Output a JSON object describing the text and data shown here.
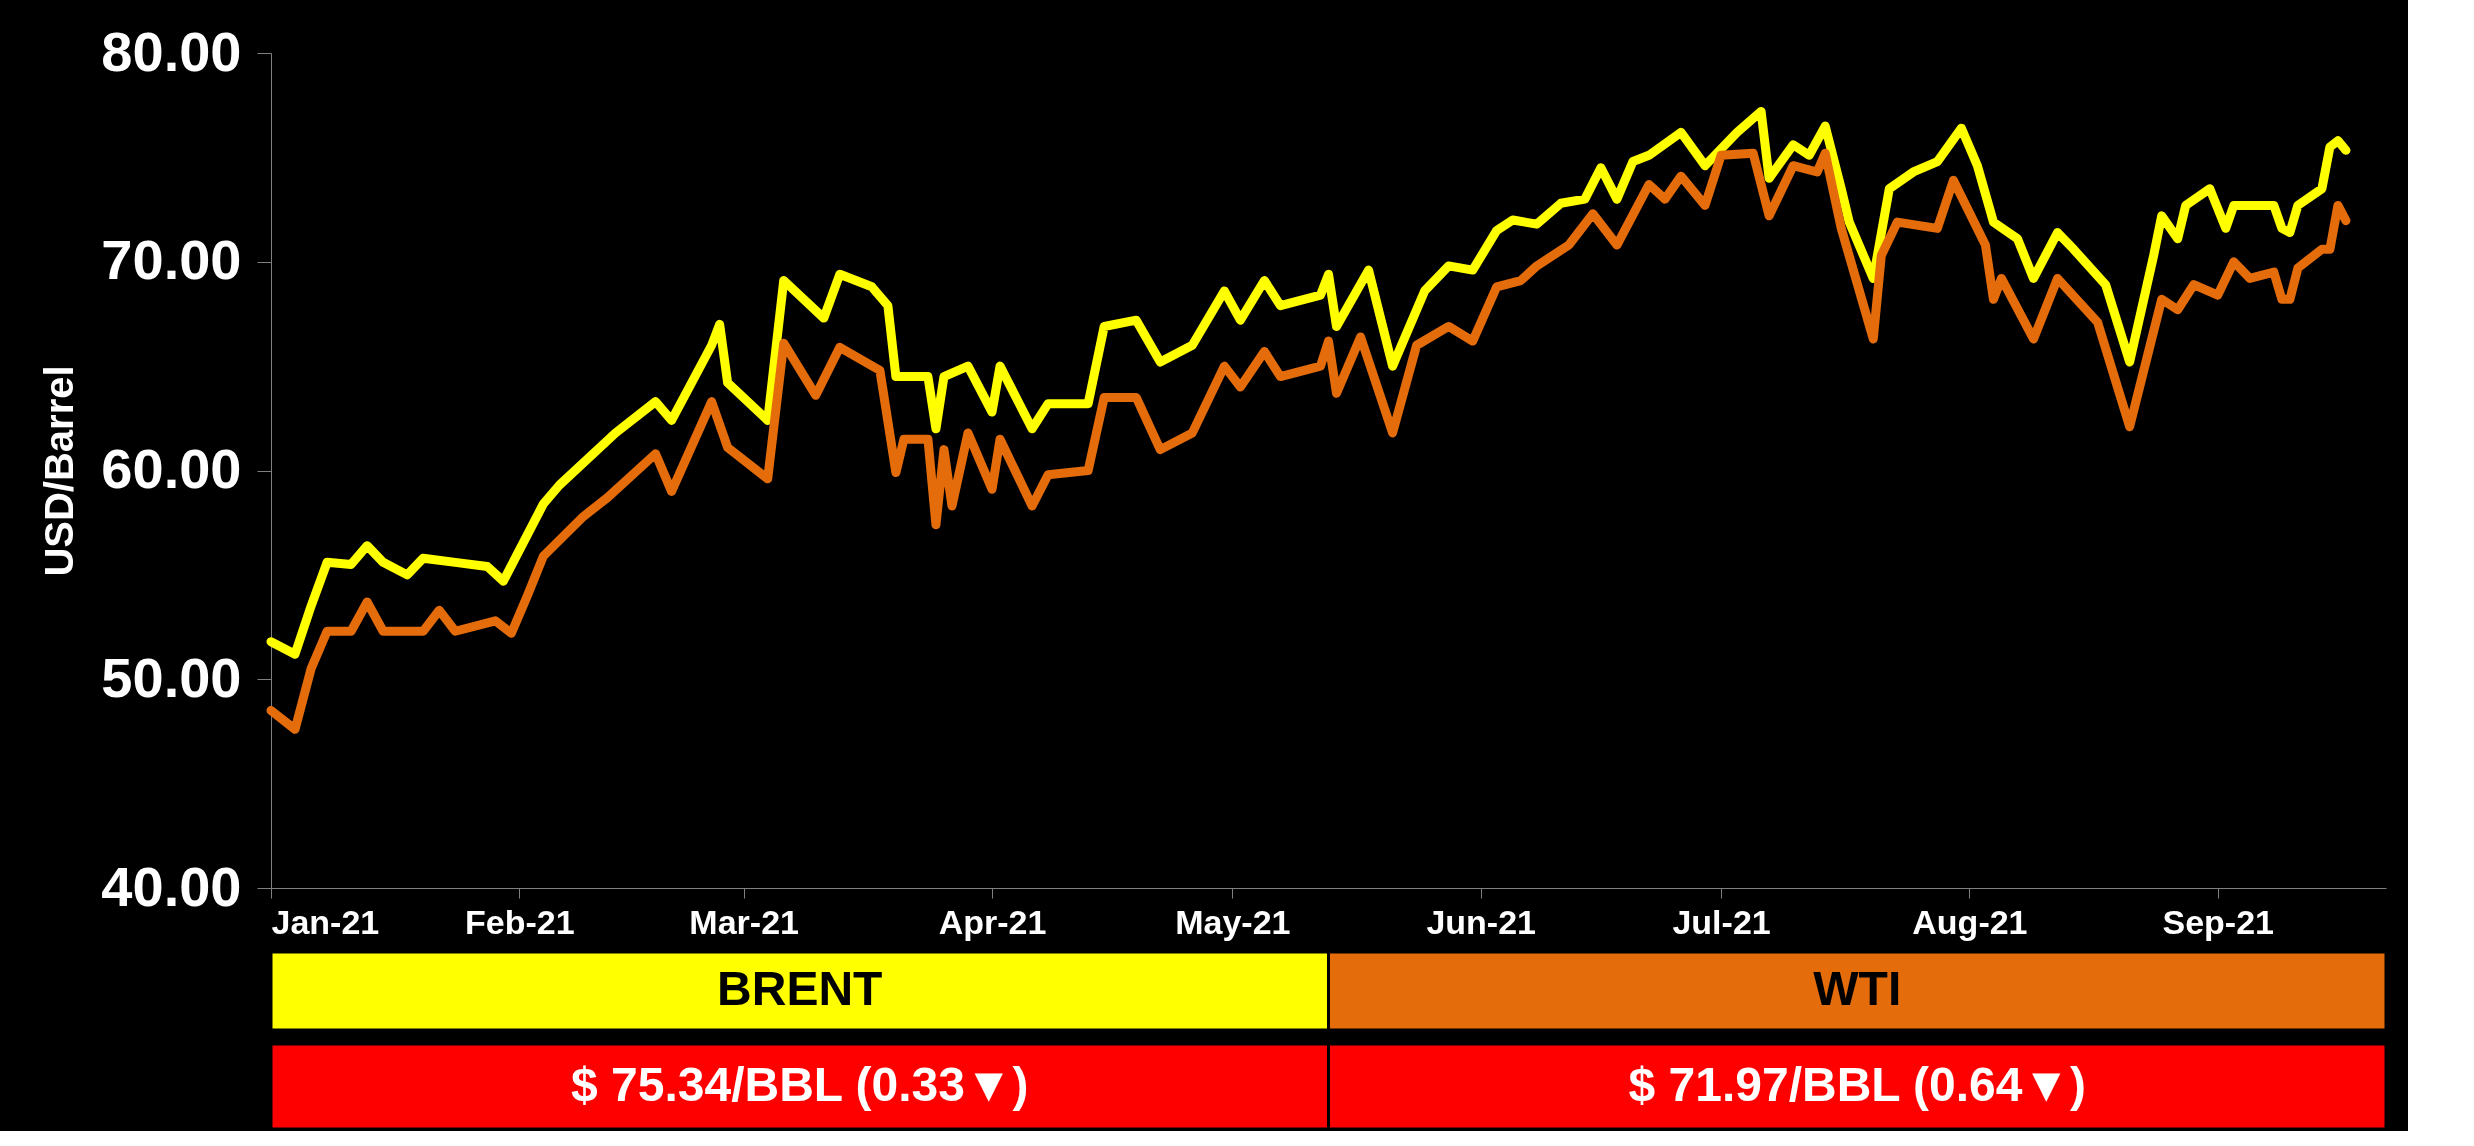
{
  "chart_data": {
    "type": "line",
    "ylabel": "USD/Barrel",
    "xlim": [
      "2021-01-01",
      "2021-09-22"
    ],
    "ylim": [
      40,
      80
    ],
    "xticks": [
      {
        "value": "2021-01-01",
        "label": "Jan-21"
      },
      {
        "value": "2021-02-01",
        "label": "Feb-21"
      },
      {
        "value": "2021-03-01",
        "label": "Mar-21"
      },
      {
        "value": "2021-04-01",
        "label": "Apr-21"
      },
      {
        "value": "2021-05-01",
        "label": "May-21"
      },
      {
        "value": "2021-06-01",
        "label": "Jun-21"
      },
      {
        "value": "2021-07-01",
        "label": "Jul-21"
      },
      {
        "value": "2021-08-01",
        "label": "Aug-21"
      },
      {
        "value": "2021-09-01",
        "label": "Sep-21"
      }
    ],
    "yticks": [
      {
        "value": 40,
        "label": "40.00"
      },
      {
        "value": 50,
        "label": "50.00"
      },
      {
        "value": 60,
        "label": "60.00"
      },
      {
        "value": 70,
        "label": "70.00"
      },
      {
        "value": 80,
        "label": "80.00"
      }
    ],
    "grid": false,
    "legend": "bottom",
    "series": [
      {
        "name": "BRENT",
        "color": "#ffff00",
        "x": [
          "2021-01-01",
          "2021-01-04",
          "2021-01-06",
          "2021-01-08",
          "2021-01-11",
          "2021-01-13",
          "2021-01-15",
          "2021-01-18",
          "2021-01-20",
          "2021-01-24",
          "2021-01-28",
          "2021-01-30",
          "2021-02-04",
          "2021-02-06",
          "2021-02-13",
          "2021-02-18",
          "2021-02-20",
          "2021-02-25",
          "2021-02-26",
          "2021-02-27",
          "2021-03-04",
          "2021-03-06",
          "2021-03-11",
          "2021-03-13",
          "2021-03-17",
          "2021-03-19",
          "2021-03-20",
          "2021-03-24",
          "2021-03-25",
          "2021-03-26",
          "2021-03-29",
          "2021-04-01",
          "2021-04-02",
          "2021-04-06",
          "2021-04-08",
          "2021-04-13",
          "2021-04-15",
          "2021-04-19",
          "2021-04-22",
          "2021-04-26",
          "2021-04-30",
          "2021-05-02",
          "2021-05-05",
          "2021-05-07",
          "2021-05-12",
          "2021-05-13",
          "2021-05-14",
          "2021-05-18",
          "2021-05-21",
          "2021-05-25",
          "2021-05-28",
          "2021-05-31",
          "2021-06-03",
          "2021-06-05",
          "2021-06-08",
          "2021-06-11",
          "2021-06-14",
          "2021-06-16",
          "2021-06-18",
          "2021-06-20",
          "2021-06-22",
          "2021-06-26",
          "2021-06-29",
          "2021-07-03",
          "2021-07-06",
          "2021-07-07",
          "2021-07-10",
          "2021-07-12",
          "2021-07-14",
          "2021-07-16",
          "2021-07-17",
          "2021-07-20",
          "2021-07-22",
          "2021-07-25",
          "2021-07-28",
          "2021-07-31",
          "2021-08-02",
          "2021-08-04",
          "2021-08-07",
          "2021-08-09",
          "2021-08-12",
          "2021-08-14",
          "2021-08-18",
          "2021-08-21",
          "2021-08-24",
          "2021-08-25",
          "2021-08-27",
          "2021-08-28",
          "2021-08-31",
          "2021-09-02",
          "2021-09-03",
          "2021-09-08",
          "2021-09-09",
          "2021-09-10",
          "2021-09-11",
          "2021-09-14",
          "2021-09-15",
          "2021-09-16",
          "2021-09-17"
        ],
        "values": [
          51.8,
          51.2,
          53.5,
          55.6,
          55.5,
          56.4,
          55.6,
          55.0,
          55.8,
          55.6,
          55.4,
          54.7,
          58.4,
          59.3,
          61.8,
          63.3,
          62.4,
          66.0,
          67.0,
          64.2,
          62.4,
          69.1,
          67.3,
          69.4,
          68.8,
          67.9,
          64.5,
          64.5,
          62.0,
          64.5,
          65.0,
          62.8,
          65.0,
          62.0,
          63.2,
          63.2,
          66.9,
          67.2,
          65.2,
          66.0,
          68.6,
          67.2,
          69.1,
          67.9,
          68.4,
          69.4,
          66.9,
          69.6,
          65.0,
          68.6,
          69.8,
          69.6,
          71.5,
          72.0,
          71.8,
          72.8,
          73.0,
          74.5,
          73.0,
          74.8,
          75.1,
          76.2,
          74.6,
          76.2,
          77.2,
          74.0,
          75.6,
          75.1,
          76.5,
          73.5,
          71.9,
          69.2,
          73.5,
          74.3,
          74.8,
          76.4,
          74.6,
          71.9,
          71.1,
          69.2,
          71.4,
          70.6,
          68.9,
          65.2,
          70.3,
          72.2,
          71.1,
          72.7,
          73.5,
          71.6,
          72.7,
          72.7,
          71.6,
          71.4,
          72.7,
          73.5,
          75.5,
          75.8,
          75.34
        ]
      },
      {
        "name": "WTI",
        "color": "#e46c0a",
        "x": [
          "2021-01-01",
          "2021-01-04",
          "2021-01-06",
          "2021-01-08",
          "2021-01-11",
          "2021-01-13",
          "2021-01-15",
          "2021-01-20",
          "2021-01-22",
          "2021-01-24",
          "2021-01-29",
          "2021-01-31",
          "2021-02-02",
          "2021-02-04",
          "2021-02-09",
          "2021-02-12",
          "2021-02-18",
          "2021-02-20",
          "2021-02-25",
          "2021-02-27",
          "2021-03-04",
          "2021-03-06",
          "2021-03-10",
          "2021-03-13",
          "2021-03-18",
          "2021-03-20",
          "2021-03-21",
          "2021-03-24",
          "2021-03-25",
          "2021-03-26",
          "2021-03-27",
          "2021-03-29",
          "2021-04-01",
          "2021-04-02",
          "2021-04-06",
          "2021-04-08",
          "2021-04-13",
          "2021-04-15",
          "2021-04-19",
          "2021-04-22",
          "2021-04-26",
          "2021-04-30",
          "2021-05-02",
          "2021-05-05",
          "2021-05-07",
          "2021-05-12",
          "2021-05-13",
          "2021-05-14",
          "2021-05-17",
          "2021-05-21",
          "2021-05-24",
          "2021-05-28",
          "2021-05-31",
          "2021-06-03",
          "2021-06-06",
          "2021-06-08",
          "2021-06-12",
          "2021-06-15",
          "2021-06-18",
          "2021-06-22",
          "2021-06-24",
          "2021-06-26",
          "2021-06-29",
          "2021-07-01",
          "2021-07-05",
          "2021-07-07",
          "2021-07-10",
          "2021-07-13",
          "2021-07-14",
          "2021-07-16",
          "2021-07-20",
          "2021-07-21",
          "2021-07-23",
          "2021-07-28",
          "2021-07-30",
          "2021-08-03",
          "2021-08-04",
          "2021-08-05",
          "2021-08-09",
          "2021-08-12",
          "2021-08-17",
          "2021-08-21",
          "2021-08-25",
          "2021-08-27",
          "2021-08-29",
          "2021-09-01",
          "2021-09-03",
          "2021-09-05",
          "2021-09-08",
          "2021-09-09",
          "2021-09-10",
          "2021-09-11",
          "2021-09-14",
          "2021-09-15",
          "2021-09-16",
          "2021-09-17"
        ],
        "values": [
          48.5,
          47.6,
          50.5,
          52.3,
          52.3,
          53.7,
          52.3,
          52.3,
          53.3,
          52.3,
          52.8,
          52.2,
          54.0,
          55.9,
          57.8,
          58.7,
          60.8,
          59.0,
          63.3,
          61.1,
          59.6,
          66.1,
          63.6,
          65.9,
          64.8,
          59.9,
          61.5,
          61.5,
          57.4,
          61.0,
          58.3,
          61.8,
          59.1,
          61.5,
          58.3,
          59.8,
          60.0,
          63.5,
          63.5,
          61.0,
          61.8,
          65.0,
          64.0,
          65.7,
          64.5,
          65.0,
          66.2,
          63.7,
          66.4,
          61.8,
          66.0,
          66.9,
          66.2,
          68.8,
          69.1,
          69.8,
          70.8,
          72.3,
          70.8,
          73.7,
          73.0,
          74.1,
          72.7,
          75.1,
          75.2,
          72.2,
          74.6,
          74.3,
          75.2,
          71.6,
          66.3,
          70.3,
          71.9,
          71.6,
          73.9,
          70.8,
          68.2,
          69.2,
          66.3,
          69.2,
          67.1,
          62.1,
          68.2,
          67.7,
          68.9,
          68.4,
          70.0,
          69.2,
          69.5,
          68.2,
          68.2,
          69.7,
          70.6,
          70.6,
          72.7,
          71.97
        ]
      }
    ],
    "annotations": [
      "$ 75.34/BBL (0.33▼)",
      "$ 71.97/BBL (0.64▼)"
    ]
  }
}
